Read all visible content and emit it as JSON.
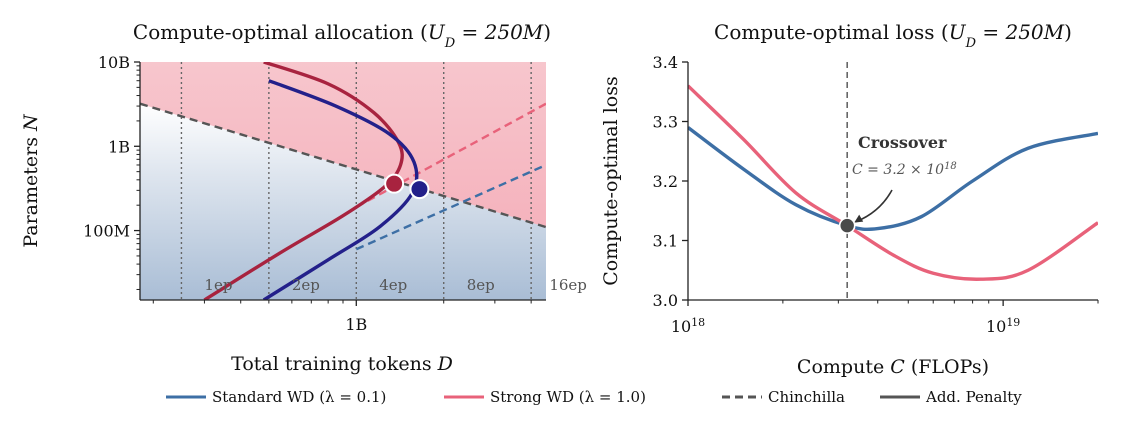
{
  "colors": {
    "standard": "#3d6fa5",
    "strong": "#e8627a",
    "chinchilla": "#555555",
    "penalty": "#555555",
    "crimson": "#a8233f",
    "navy": "#23208a",
    "crossover_dot": "#4a4a4a"
  },
  "legend": [
    {
      "key": "standard",
      "label": "Standard WD (λ = 0.1)",
      "style": "solid"
    },
    {
      "key": "strong",
      "label": "Strong WD (λ = 1.0)",
      "style": "solid"
    },
    {
      "key": "chinchilla",
      "label": "Chinchilla",
      "style": "dashed"
    },
    {
      "key": "penalty",
      "label": "Add. Penalty",
      "style": "solid"
    }
  ],
  "chart_data": [
    {
      "type": "line",
      "title": "Compute-optimal allocation  (U_D = 250M)",
      "xlabel": "Total training tokens D",
      "ylabel": "Parameters N",
      "xscale": "log",
      "yscale": "log",
      "xlim": [
        180000000,
        4500000000
      ],
      "ylim": [
        15000000,
        10000000000
      ],
      "xticks": [
        {
          "value": 1000000000,
          "label": "1B"
        }
      ],
      "yticks": [
        {
          "value": 100000000,
          "label": "100M"
        },
        {
          "value": 1000000000,
          "label": "1B"
        },
        {
          "value": 10000000000,
          "label": "10B"
        }
      ],
      "epoch_lines": [
        {
          "value": 250000000,
          "label": "1ep"
        },
        {
          "value": 500000000,
          "label": "2ep"
        },
        {
          "value": 1000000000,
          "label": "4ep"
        },
        {
          "value": 2000000000,
          "label": "8ep"
        },
        {
          "value": 4000000000,
          "label": "16ep"
        }
      ],
      "background": "red region above the Chinchilla boundary, blue region below",
      "series": [
        {
          "key": "chinchilla",
          "style": "dashed",
          "points": [
            [
              180000000,
              3200000000
            ],
            [
              4500000000,
              110000000
            ]
          ]
        },
        {
          "key": "strong",
          "style": "dashed",
          "points": [
            [
              1000000000,
              190000000
            ],
            [
              4500000000,
              3200000000
            ]
          ]
        },
        {
          "key": "standard",
          "style": "dashed",
          "points": [
            [
              1000000000,
              60000000
            ],
            [
              4500000000,
              600000000
            ]
          ]
        },
        {
          "key": "crimson",
          "style": "solid",
          "points": [
            [
              480000000,
              10000000000
            ],
            [
              800000000,
              5500000000
            ],
            [
              1150000000,
              2500000000
            ],
            [
              1400000000,
              1100000000
            ],
            [
              1420000000,
              600000000
            ],
            [
              1250000000,
              330000000
            ],
            [
              900000000,
              150000000
            ],
            [
              550000000,
              55000000
            ],
            [
              300000000,
              15000000
            ]
          ]
        },
        {
          "key": "navy",
          "style": "solid",
          "points": [
            [
              500000000,
              6000000000
            ],
            [
              850000000,
              3000000000
            ],
            [
              1300000000,
              1400000000
            ],
            [
              1580000000,
              650000000
            ],
            [
              1560000000,
              280000000
            ],
            [
              1200000000,
              110000000
            ],
            [
              800000000,
              45000000
            ],
            [
              480000000,
              15000000
            ]
          ]
        }
      ],
      "markers": [
        {
          "key": "crimson",
          "x": 1350000000,
          "y": 360000000
        },
        {
          "key": "navy",
          "x": 1650000000,
          "y": 310000000
        }
      ]
    },
    {
      "type": "line",
      "title": "Compute-optimal loss  (U_D = 250M)",
      "xlabel": "Compute C (FLOPs)",
      "ylabel": "Compute-optimal loss",
      "xscale": "log",
      "xlim": [
        1e+18,
        2e+19
      ],
      "ylim": [
        3.0,
        3.4
      ],
      "xticks": [
        {
          "value": 1e+18,
          "label": "10^18"
        },
        {
          "value": 1e+19,
          "label": "10^19"
        }
      ],
      "yticks": [
        {
          "value": 3.0,
          "label": "3.0"
        },
        {
          "value": 3.1,
          "label": "3.1"
        },
        {
          "value": 3.2,
          "label": "3.2"
        },
        {
          "value": 3.3,
          "label": "3.3"
        },
        {
          "value": 3.4,
          "label": "3.4"
        }
      ],
      "series": [
        {
          "key": "standard",
          "points": [
            [
              1e+18,
              3.29
            ],
            [
              1.5e+18,
              3.22
            ],
            [
              2.2e+18,
              3.16
            ],
            [
              3.2e+18,
              3.125
            ],
            [
              4e+18,
              3.12
            ],
            [
              5.5e+18,
              3.14
            ],
            [
              8e+18,
              3.2
            ],
            [
              1.2e+19,
              3.255
            ],
            [
              2e+19,
              3.28
            ]
          ]
        },
        {
          "key": "strong",
          "points": [
            [
              1e+18,
              3.36
            ],
            [
              1.5e+18,
              3.27
            ],
            [
              2.2e+18,
              3.18
            ],
            [
              3.2e+18,
              3.125
            ],
            [
              4.5e+18,
              3.075
            ],
            [
              6e+18,
              3.045
            ],
            [
              8.5e+18,
              3.035
            ],
            [
              1.2e+19,
              3.05
            ],
            [
              2e+19,
              3.13
            ]
          ]
        }
      ],
      "vline": {
        "x": 3.2e+18,
        "style": "dashed"
      },
      "crossover": {
        "x": 3.2e+18,
        "y": 3.125,
        "title": "Crossover",
        "value_label": "C = 3.2 × 10^18"
      }
    }
  ]
}
